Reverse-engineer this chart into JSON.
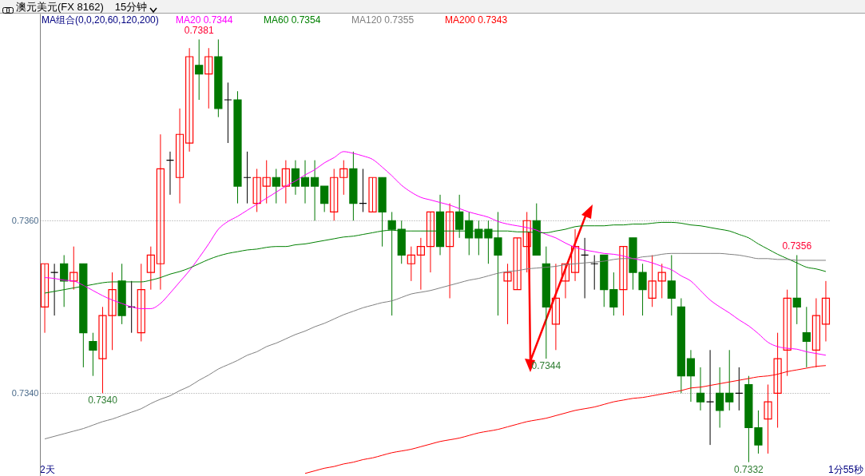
{
  "chart_data": {
    "type": "candlestick",
    "title": "澳元美元(FX 8162)",
    "subtitle": "15分钟",
    "legend_title": "MA组合(0,0,20,60,120,200)",
    "categories": [
      null,
      null,
      null,
      null,
      null,
      null,
      null,
      null,
      null,
      null,
      null,
      null,
      null,
      null,
      null,
      null,
      null,
      null,
      null,
      null,
      null,
      null,
      null,
      null,
      null,
      null,
      null,
      null,
      null,
      null,
      null,
      null,
      null,
      null,
      null,
      null,
      null,
      null,
      null,
      null,
      null,
      null,
      null,
      null,
      null,
      null,
      null,
      null,
      null,
      null,
      null,
      null,
      null,
      null,
      null,
      null,
      null,
      null,
      null,
      null,
      null,
      null,
      null,
      null,
      null,
      null,
      null,
      null,
      null,
      null,
      null,
      null,
      null,
      null,
      null,
      null,
      null,
      null,
      null,
      null,
      null,
      null
    ],
    "ohlc": [
      [
        0.735,
        0.7355,
        0.7347,
        0.7355
      ],
      [
        0.7354,
        0.7355,
        0.7349,
        0.7354
      ],
      [
        0.7355,
        0.7356,
        0.735,
        0.7353
      ],
      [
        0.7353,
        0.7357,
        0.7352,
        0.7354
      ],
      [
        0.7355,
        0.7355,
        0.7343,
        0.7347
      ],
      [
        0.7346,
        0.7347,
        0.7342,
        0.7345
      ],
      [
        0.7344,
        0.735,
        0.734,
        0.7349
      ],
      [
        0.7349,
        0.7354,
        0.7345,
        0.7352
      ],
      [
        0.7353,
        0.7355,
        0.7348,
        0.7349
      ],
      [
        0.735,
        0.7353,
        0.7347,
        0.735
      ],
      [
        0.7347,
        0.7355,
        0.7346,
        0.7352
      ],
      [
        0.7354,
        0.7357,
        0.7352,
        0.7356
      ],
      [
        0.7355,
        0.737,
        0.7352,
        0.7366
      ],
      [
        0.7367,
        0.7368,
        0.7363,
        0.7367
      ],
      [
        0.7365,
        0.7373,
        0.7362,
        0.737
      ],
      [
        0.7369,
        0.738,
        0.7368,
        0.7379
      ],
      [
        0.7378,
        0.7381,
        0.7374,
        0.7377
      ],
      [
        0.7377,
        0.738,
        0.7373,
        0.7379
      ],
      [
        0.7379,
        0.7381,
        0.7372,
        0.7373
      ],
      [
        0.7374,
        0.7376,
        0.7369,
        0.7374
      ],
      [
        0.7374,
        0.7375,
        0.7362,
        0.7364
      ],
      [
        0.7365,
        0.7368,
        0.7362,
        0.7365
      ],
      [
        0.7362,
        0.7366,
        0.7361,
        0.7365
      ],
      [
        0.7364,
        0.7367,
        0.7362,
        0.7365
      ],
      [
        0.7365,
        0.7366,
        0.7362,
        0.7364
      ],
      [
        0.7364,
        0.7367,
        0.7362,
        0.7366
      ],
      [
        0.7366,
        0.7367,
        0.7363,
        0.7364
      ],
      [
        0.7365,
        0.7367,
        0.7362,
        0.7364
      ],
      [
        0.7365,
        0.7367,
        0.736,
        0.7364
      ],
      [
        0.7364,
        0.7364,
        0.7361,
        0.7362
      ],
      [
        0.7361,
        0.7366,
        0.736,
        0.7365
      ],
      [
        0.7365,
        0.7367,
        0.7363,
        0.7366
      ],
      [
        0.7366,
        0.7368,
        0.736,
        0.7362
      ],
      [
        0.7362,
        0.7366,
        0.7361,
        0.7362
      ],
      [
        0.7361,
        0.7365,
        0.7361,
        0.7365
      ],
      [
        0.7365,
        0.7365,
        0.7357,
        0.7361
      ],
      [
        0.736,
        0.7361,
        0.7349,
        0.7359
      ],
      [
        0.7359,
        0.736,
        0.7355,
        0.7356
      ],
      [
        0.7355,
        0.7357,
        0.7353,
        0.7356
      ],
      [
        0.7356,
        0.7358,
        0.7352,
        0.7357
      ],
      [
        0.7357,
        0.7361,
        0.7354,
        0.7361
      ],
      [
        0.7361,
        0.7363,
        0.7356,
        0.7357
      ],
      [
        0.7357,
        0.7362,
        0.7351,
        0.7361
      ],
      [
        0.7361,
        0.7363,
        0.7358,
        0.7359
      ],
      [
        0.736,
        0.7361,
        0.7356,
        0.7358
      ],
      [
        0.7359,
        0.736,
        0.7356,
        0.7358
      ],
      [
        0.7359,
        0.736,
        0.7355,
        0.7358
      ],
      [
        0.7358,
        0.7361,
        0.7349,
        0.7356
      ],
      [
        0.7353,
        0.7355,
        0.7348,
        0.7354
      ],
      [
        0.7352,
        0.7358,
        0.7352,
        0.7358
      ],
      [
        0.7357,
        0.7361,
        0.7354,
        0.736
      ],
      [
        0.736,
        0.7362,
        0.7356,
        0.7356
      ],
      [
        0.7355,
        0.7357,
        0.7344,
        0.735
      ],
      [
        0.7348,
        0.7355,
        0.7345,
        0.7351
      ],
      [
        0.7353,
        0.7355,
        0.7351,
        0.7355
      ],
      [
        0.7354,
        0.7359,
        0.7353,
        0.7357
      ],
      [
        0.7356,
        0.7358,
        0.7351,
        0.7356
      ],
      [
        0.7355,
        0.7356,
        0.7352,
        0.7355
      ],
      [
        0.7356,
        0.7356,
        0.735,
        0.7352
      ],
      [
        0.7352,
        0.7354,
        0.7349,
        0.735
      ],
      [
        0.7352,
        0.7357,
        0.7349,
        0.7357
      ],
      [
        0.7358,
        0.7358,
        0.7352,
        0.7354
      ],
      [
        0.7354,
        0.7355,
        0.7349,
        0.7352
      ],
      [
        0.7351,
        0.7356,
        0.735,
        0.7353
      ],
      [
        0.7353,
        0.7355,
        0.7351,
        0.7354
      ],
      [
        0.7353,
        0.7356,
        0.7349,
        0.7351
      ],
      [
        0.735,
        0.7351,
        0.734,
        0.7342
      ],
      [
        0.7344,
        0.7345,
        0.7339,
        0.7342
      ],
      [
        0.734,
        0.7343,
        0.7338,
        0.7339
      ],
      [
        0.7339,
        0.7345,
        0.7334,
        0.7339
      ],
      [
        0.734,
        0.7343,
        0.7336,
        0.7338
      ],
      [
        0.734,
        0.7345,
        0.7338,
        0.7339
      ],
      [
        0.734,
        0.7343,
        0.7338,
        0.734
      ],
      [
        0.7341,
        0.7342,
        0.7332,
        0.7336
      ],
      [
        0.7336,
        0.7338,
        0.7333,
        0.7334
      ],
      [
        0.7337,
        0.7341,
        0.7333,
        0.7339
      ],
      [
        0.734,
        0.7347,
        0.7336,
        0.7344
      ],
      [
        0.7345,
        0.7352,
        0.7342,
        0.7351
      ],
      [
        0.7351,
        0.7356,
        0.7348,
        0.735
      ],
      [
        0.7347,
        0.735,
        0.7343,
        0.7346
      ],
      [
        0.7345,
        0.7351,
        0.7343,
        0.7349
      ],
      [
        0.7348,
        0.7353,
        0.7346,
        0.7351
      ]
    ],
    "series": [
      {
        "name": "MA20 0.7344",
        "type": "line",
        "color": "#ff00ff",
        "values": [
          0.73534,
          0.73533,
          0.73531,
          0.7353,
          0.73525,
          0.73519,
          0.73513,
          0.73508,
          0.73504,
          0.735,
          0.73498,
          0.73498,
          0.73504,
          0.73516,
          0.73529,
          0.73542,
          0.73557,
          0.73573,
          0.7359,
          0.73599,
          0.73605,
          0.73612,
          0.73619,
          0.73626,
          0.73633,
          0.7364,
          0.73646,
          0.73653,
          0.73659,
          0.73667,
          0.73673,
          0.7368,
          0.73678,
          0.73675,
          0.73671,
          0.73662,
          0.73652,
          0.73641,
          0.73633,
          0.73627,
          0.73624,
          0.73621,
          0.73618,
          0.73614,
          0.7361,
          0.73607,
          0.73604,
          0.73599,
          0.73596,
          0.73594,
          0.73592,
          0.73589,
          0.73584,
          0.7358,
          0.73574,
          0.73569,
          0.73566,
          0.73564,
          0.73562,
          0.73561,
          0.73559,
          0.73556,
          0.73554,
          0.73551,
          0.73547,
          0.73543,
          0.73536,
          0.7353,
          0.73519,
          0.73508,
          0.735,
          0.73493,
          0.73485,
          0.73478,
          0.73469,
          0.73459,
          0.73454,
          0.73452,
          0.73451,
          0.73448,
          0.73446,
          0.73444
        ]
      },
      {
        "name": "MA60 0.7354",
        "type": "line",
        "color": "#008000",
        "values": [
          0.73516,
          0.73518,
          0.7352,
          0.73522,
          0.73524,
          0.73526,
          0.73528,
          0.73529,
          0.73529,
          0.73529,
          0.73529,
          0.73531,
          0.73534,
          0.73538,
          0.73541,
          0.73545,
          0.7355,
          0.73555,
          0.73559,
          0.73562,
          0.73564,
          0.73566,
          0.73567,
          0.73569,
          0.7357,
          0.7357,
          0.73572,
          0.73573,
          0.73575,
          0.73577,
          0.73579,
          0.73581,
          0.73582,
          0.73584,
          0.73586,
          0.73588,
          0.73589,
          0.73588,
          0.73588,
          0.73588,
          0.73588,
          0.73588,
          0.73588,
          0.73588,
          0.73588,
          0.73588,
          0.73588,
          0.73588,
          0.73588,
          0.73587,
          0.73587,
          0.73586,
          0.73586,
          0.73588,
          0.7359,
          0.73593,
          0.73594,
          0.73594,
          0.73594,
          0.73595,
          0.73595,
          0.73596,
          0.73596,
          0.73597,
          0.73598,
          0.73598,
          0.73597,
          0.73595,
          0.73594,
          0.73592,
          0.7359,
          0.73588,
          0.73584,
          0.7358,
          0.73573,
          0.73567,
          0.73561,
          0.73556,
          0.73551,
          0.73546,
          0.73544,
          0.73541
        ]
      },
      {
        "name": "MA120 0.7355",
        "type": "line",
        "color": "#808080",
        "values": [
          0.73347,
          0.7335,
          0.73353,
          0.73356,
          0.73359,
          0.73363,
          0.73367,
          0.7337,
          0.73374,
          0.73378,
          0.73382,
          0.73388,
          0.73393,
          0.73397,
          0.73403,
          0.73408,
          0.73415,
          0.73421,
          0.73428,
          0.73433,
          0.73438,
          0.73444,
          0.73448,
          0.73454,
          0.73458,
          0.73463,
          0.73468,
          0.73472,
          0.73477,
          0.73481,
          0.73486,
          0.73491,
          0.73495,
          0.73499,
          0.73502,
          0.73505,
          0.73507,
          0.73511,
          0.73515,
          0.73517,
          0.73519,
          0.73522,
          0.73525,
          0.73528,
          0.73531,
          0.73533,
          0.73536,
          0.73539,
          0.73541,
          0.73542,
          0.73544,
          0.73545,
          0.73546,
          0.73547,
          0.73549,
          0.7355,
          0.73551,
          0.73552,
          0.73553,
          0.73555,
          0.73556,
          0.73556,
          0.73558,
          0.73559,
          0.73561,
          0.73562,
          0.73562,
          0.73562,
          0.73562,
          0.73562,
          0.73562,
          0.73561,
          0.7356,
          0.73558,
          0.73556,
          0.73556,
          0.73555,
          0.73555,
          0.73554,
          0.73554,
          0.73554,
          0.73554
        ]
      },
      {
        "name": "MA200 0.7343",
        "type": "line",
        "color": "#ff0000",
        "values": [
          null,
          null,
          null,
          null,
          null,
          null,
          null,
          null,
          null,
          null,
          null,
          null,
          null,
          null,
          null,
          null,
          null,
          null,
          null,
          null,
          null,
          null,
          null,
          null,
          null,
          null,
          null,
          0.73307,
          0.7331,
          0.73313,
          0.73315,
          0.73318,
          0.7332,
          0.73323,
          0.73325,
          0.73328,
          0.73331,
          0.73333,
          0.73335,
          0.73338,
          0.73341,
          0.73344,
          0.73346,
          0.73348,
          0.73351,
          0.73354,
          0.73356,
          0.73358,
          0.73361,
          0.73364,
          0.73367,
          0.73369,
          0.73371,
          0.73374,
          0.73377,
          0.7338,
          0.73382,
          0.73384,
          0.73387,
          0.7339,
          0.73392,
          0.73394,
          0.73395,
          0.73397,
          0.73399,
          0.73401,
          0.73403,
          0.73406,
          0.73407,
          0.73409,
          0.73411,
          0.73413,
          0.73415,
          0.73417,
          0.73419,
          0.7342,
          0.73422,
          0.73425,
          0.73427,
          0.73429,
          0.73431,
          0.73432
        ]
      }
    ],
    "ylim": [
      0.73304,
      0.7384
    ],
    "yticks": [
      {
        "value": 0.734,
        "label": "0.7340"
      },
      {
        "value": 0.736,
        "label": "0.7360"
      }
    ],
    "grid": "y",
    "legend": "top left",
    "tick_labels": "y",
    "annotations": [
      {
        "text": "0.7340",
        "y": 0.734
      },
      {
        "text": "0.7381",
        "y": 0.7381
      },
      {
        "text": "0.7344",
        "y": 0.7344
      },
      {
        "text": "0.7332",
        "y": 0.7332
      },
      {
        "text": "0.7356",
        "y": 0.7356
      },
      "2天",
      "1分55秒"
    ]
  }
}
